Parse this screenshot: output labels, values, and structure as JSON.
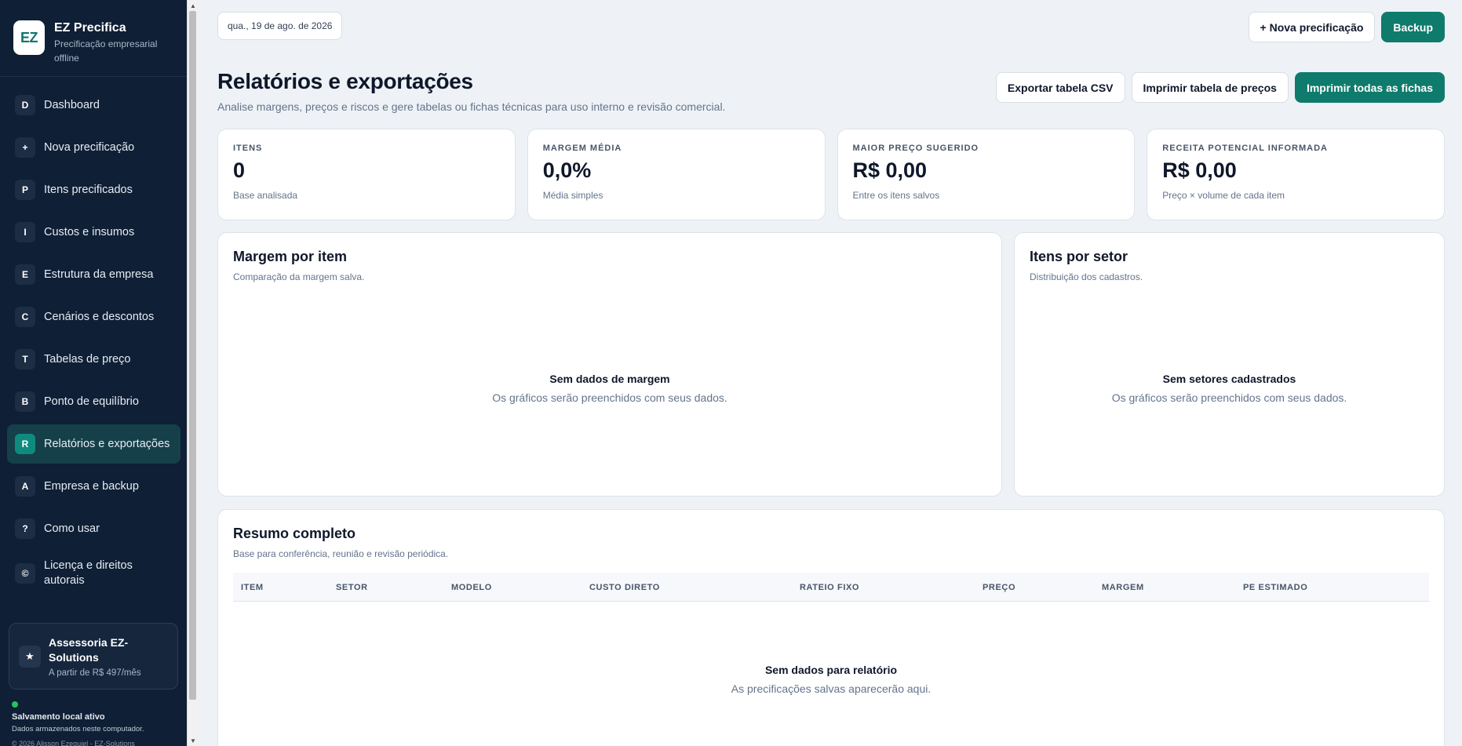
{
  "brand": {
    "logo": "EZ",
    "title": "EZ Precifica",
    "subtitle": "Precificação empresarial offline"
  },
  "nav": [
    {
      "badge": "D",
      "label": "Dashboard"
    },
    {
      "badge": "+",
      "label": "Nova precificação"
    },
    {
      "badge": "P",
      "label": "Itens precificados"
    },
    {
      "badge": "I",
      "label": "Custos e insumos"
    },
    {
      "badge": "E",
      "label": "Estrutura da empresa"
    },
    {
      "badge": "C",
      "label": "Cenários e descontos"
    },
    {
      "badge": "T",
      "label": "Tabelas de preço"
    },
    {
      "badge": "B",
      "label": "Ponto de equilíbrio"
    },
    {
      "badge": "R",
      "label": "Relatórios e exportações",
      "active": true
    },
    {
      "badge": "A",
      "label": "Empresa e backup"
    },
    {
      "badge": "?",
      "label": "Como usar"
    },
    {
      "badge": "©",
      "label": "Licença e direitos autorais"
    }
  ],
  "promo": {
    "icon": "star-icon",
    "glyph": "★",
    "title": "Assessoria EZ-Solutions",
    "subtitle": "A partir de R$ 497/mês"
  },
  "save_status": {
    "title": "Salvamento local ativo",
    "subtitle": "Dados armazenados neste computador.",
    "copyright": "© 2026 Alisson Ezequiel - EZ-Solutions"
  },
  "topbar": {
    "date": "qua., 19 de ago. de 2026",
    "new_button": "+ Nova precificação",
    "backup_button": "Backup"
  },
  "page": {
    "title": "Relatórios e exportações",
    "subtitle": "Analise margens, preços e riscos e gere tabelas ou fichas técnicas para uso interno e revisão comercial.",
    "export_csv": "Exportar tabela CSV",
    "print_prices": "Imprimir tabela de preços",
    "print_all": "Imprimir todas as fichas"
  },
  "stats": [
    {
      "label": "ITENS",
      "value": "0",
      "note": "Base analisada"
    },
    {
      "label": "MARGEM MÉDIA",
      "value": "0,0%",
      "note": "Média simples"
    },
    {
      "label": "MAIOR PREÇO SUGERIDO",
      "value": "R$ 0,00",
      "note": "Entre os itens salvos"
    },
    {
      "label": "RECEITA POTENCIAL INFORMADA",
      "value": "R$ 0,00",
      "note": "Preço × volume de cada item"
    }
  ],
  "margem_panel": {
    "title": "Margem por item",
    "subtitle": "Comparação da margem salva.",
    "empty_title": "Sem dados de margem",
    "empty_sub": "Os gráficos serão preenchidos com seus dados."
  },
  "setor_panel": {
    "title": "Itens por setor",
    "subtitle": "Distribuição dos cadastros.",
    "empty_title": "Sem setores cadastrados",
    "empty_sub": "Os gráficos serão preenchidos com seus dados."
  },
  "resumo_panel": {
    "title": "Resumo completo",
    "subtitle": "Base para conferência, reunião e revisão periódica.",
    "columns": [
      "ITEM",
      "SETOR",
      "MODELO",
      "CUSTO DIRETO",
      "RATEIO FIXO",
      "PREÇO",
      "MARGEM",
      "PE ESTIMADO"
    ],
    "empty_title": "Sem dados para relatório",
    "empty_sub": "As precificações salvas aparecerão aqui."
  },
  "colors": {
    "sidebar_bg": "#0f1f35",
    "accent": "#0f7b6c",
    "active_nav": "#15404a",
    "page_bg": "#eef2f6",
    "status_green": "#22c55e"
  }
}
